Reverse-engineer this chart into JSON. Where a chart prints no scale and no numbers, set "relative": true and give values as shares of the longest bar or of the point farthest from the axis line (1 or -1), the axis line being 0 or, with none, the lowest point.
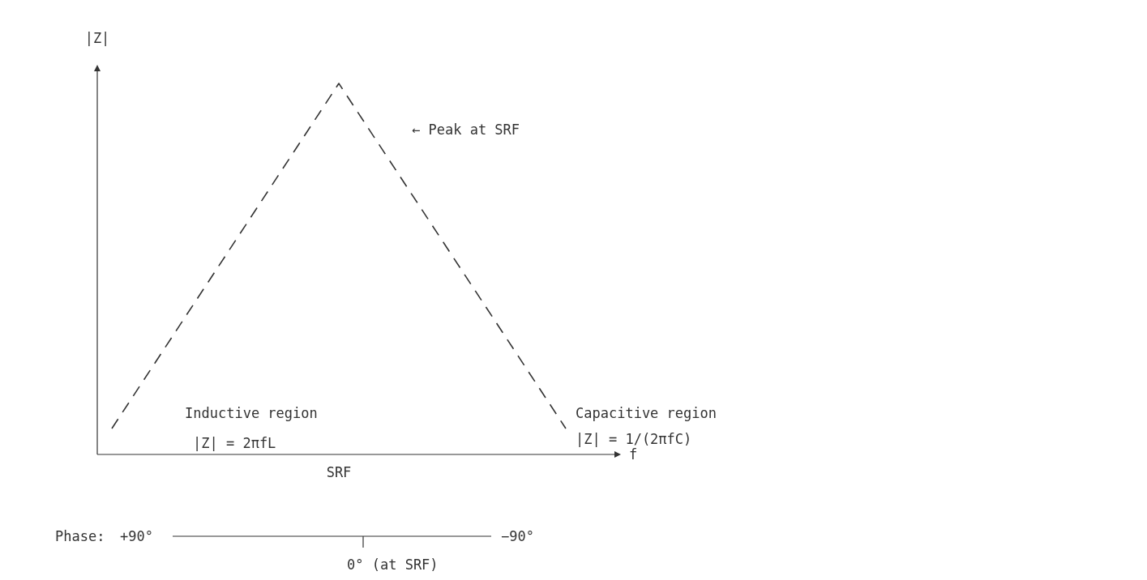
{
  "chart_data": {
    "type": "line",
    "relative": true,
    "ylabel": "|Z|",
    "xlabel": "f",
    "categories": [
      null,
      null,
      null
    ],
    "series": [
      {
        "color": "#333333",
        "values": [
          0.07,
          1,
          0.07
        ]
      }
    ],
    "line_style": "dashed",
    "marker": "none",
    "annotations": [
      "SRF",
      "← Peak at SRF",
      "Inductive region",
      "|Z| = 2πfL",
      "Capacitive region",
      "|Z| = 1/(2πfC)",
      "Phase:",
      "+90°",
      "−90°",
      "0° (at SRF)"
    ]
  }
}
